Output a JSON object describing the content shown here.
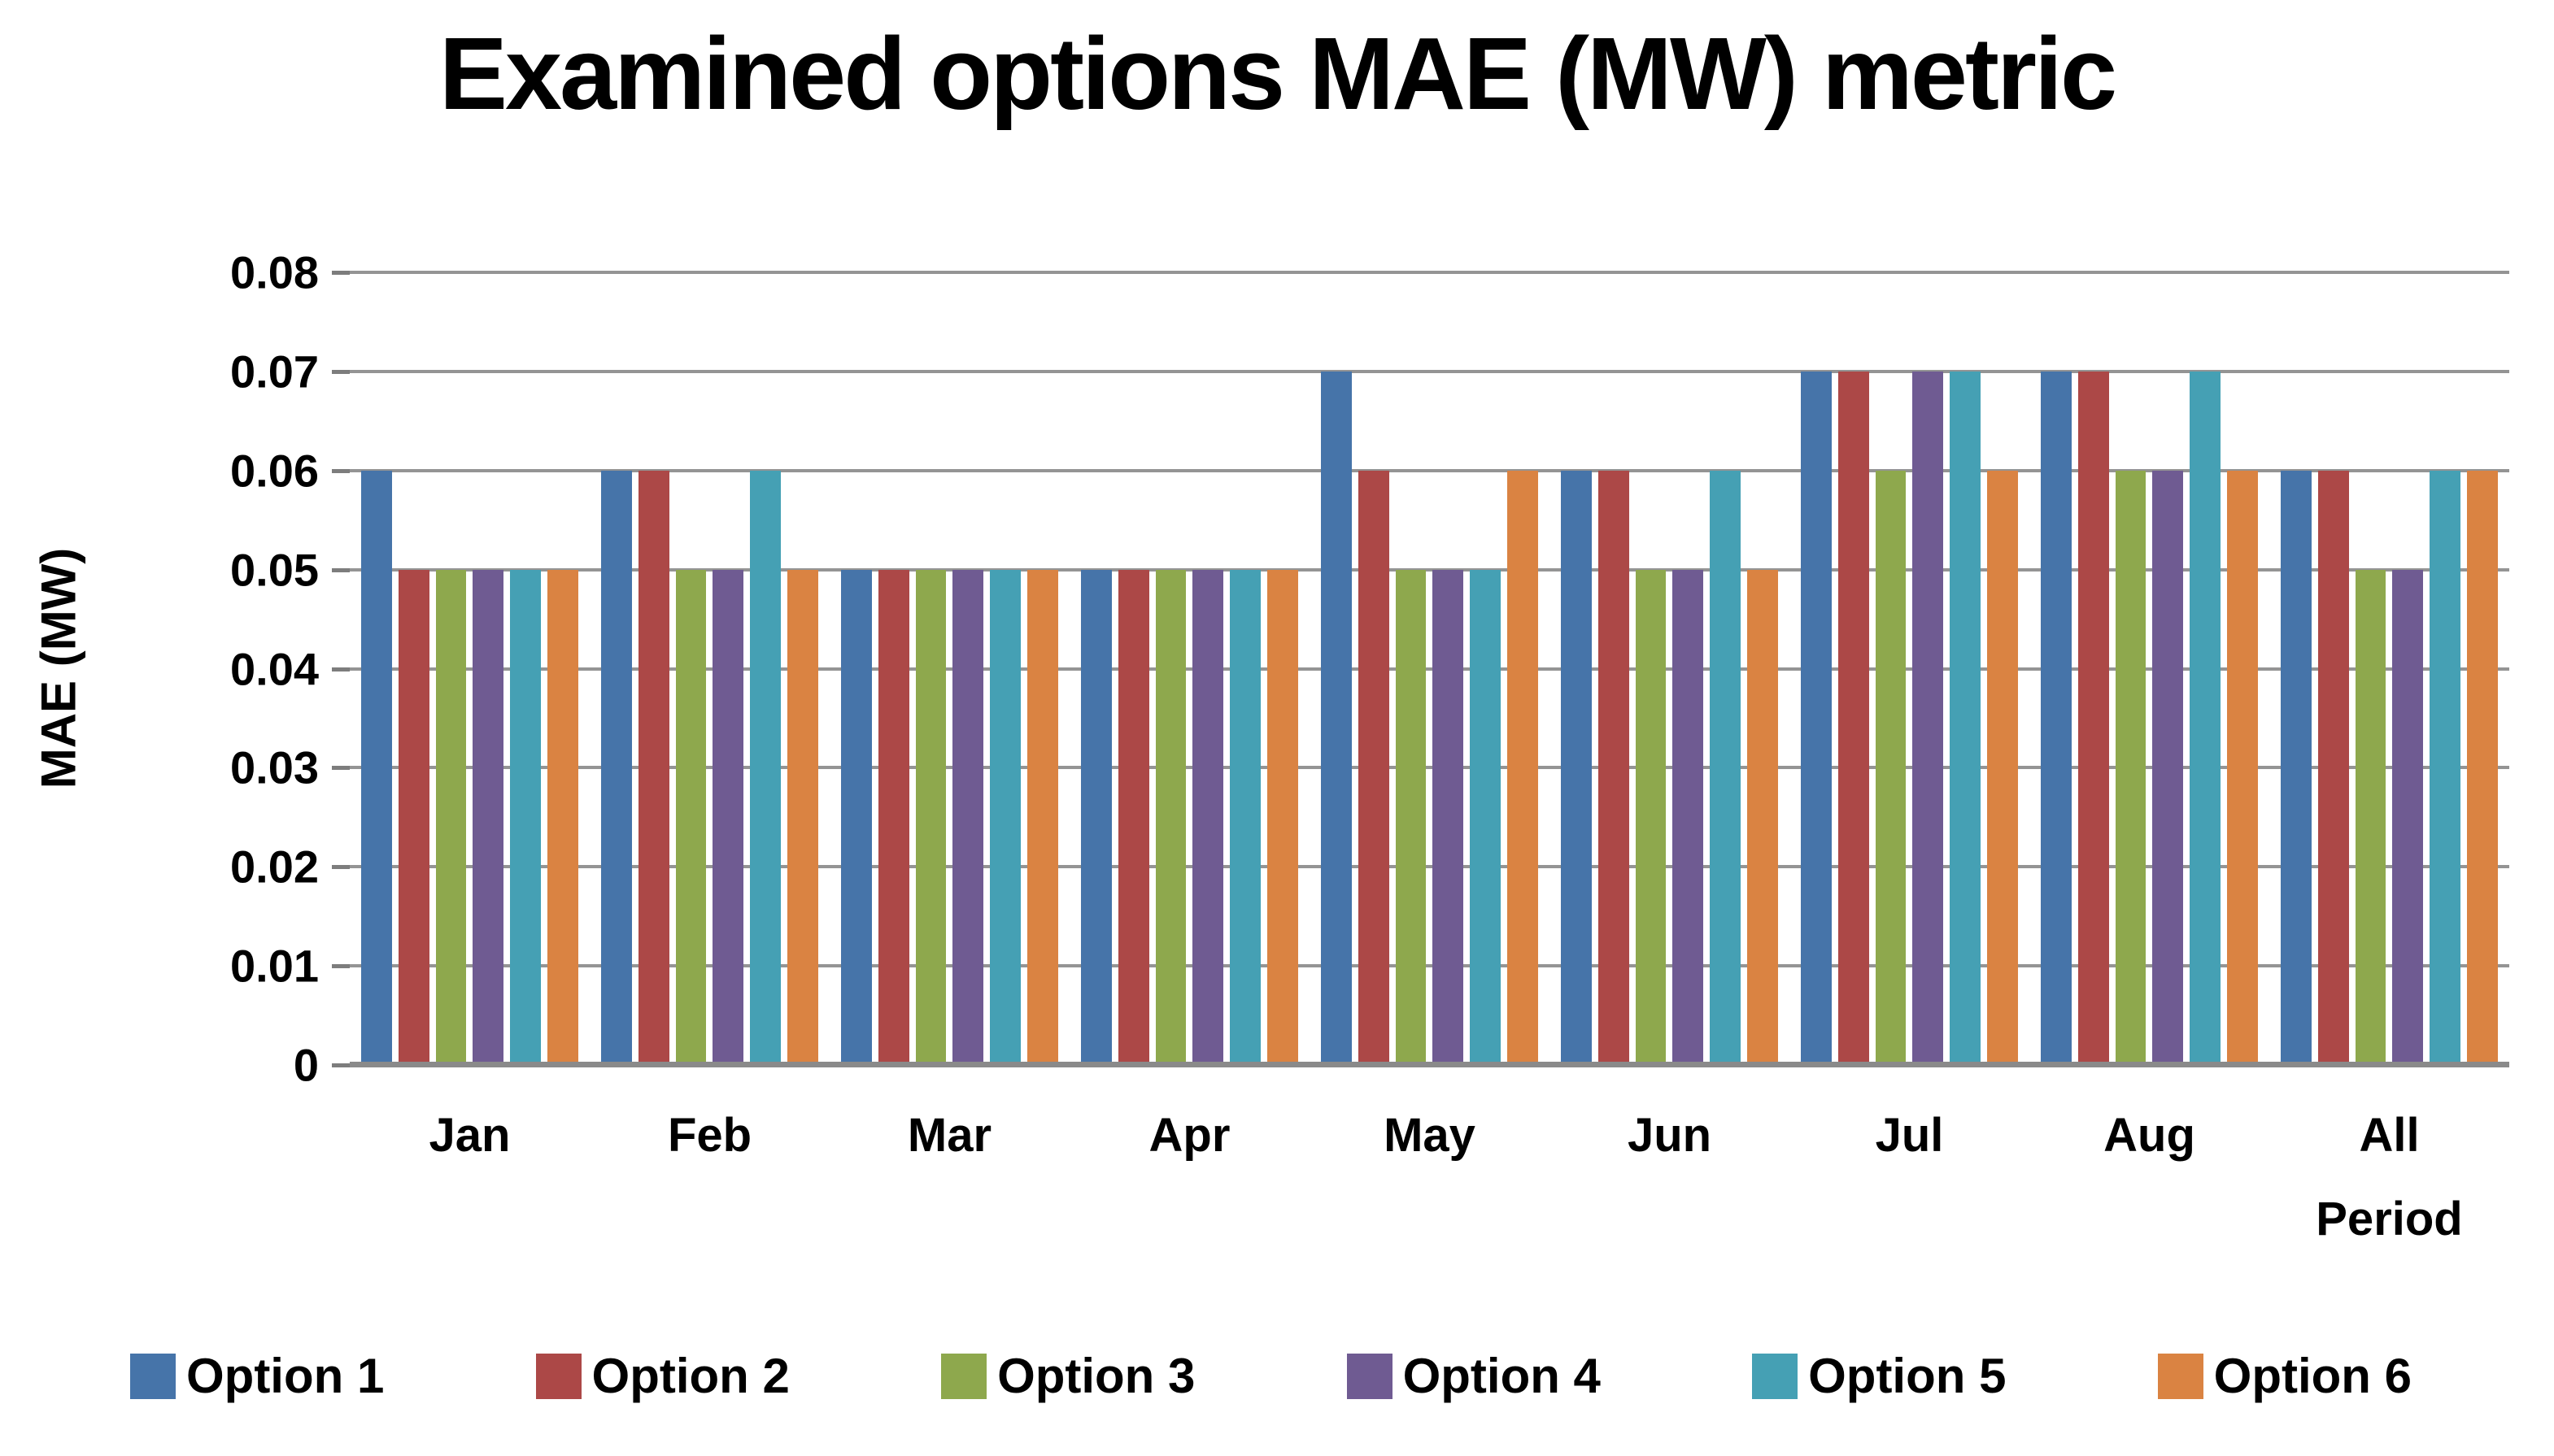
{
  "chart_data": {
    "type": "bar",
    "title": "Examined options MAE (MW) metric",
    "xlabel": "",
    "ylabel": "MAE (MW)",
    "ylim": [
      0,
      0.08
    ],
    "ytick_step": 0.01,
    "yticks": [
      "0.08",
      "0.07",
      "0.06",
      "0.05",
      "0.04",
      "0.03",
      "0.02",
      "0.01",
      "0"
    ],
    "grid": true,
    "legend_position": "bottom",
    "categories": [
      "Jan",
      "Feb",
      "Mar",
      "Apr",
      "May",
      "Jun",
      "Jul",
      "Aug",
      "All Period"
    ],
    "series": [
      {
        "name": "Option 1",
        "color": "#4674A9",
        "values": [
          0.06,
          0.06,
          0.05,
          0.05,
          0.07,
          0.06,
          0.07,
          0.07,
          0.06
        ]
      },
      {
        "name": "Option 2",
        "color": "#AC4847",
        "values": [
          0.05,
          0.06,
          0.05,
          0.05,
          0.06,
          0.06,
          0.07,
          0.07,
          0.06
        ]
      },
      {
        "name": "Option 3",
        "color": "#8EA84D",
        "values": [
          0.05,
          0.05,
          0.05,
          0.05,
          0.05,
          0.05,
          0.06,
          0.06,
          0.05
        ]
      },
      {
        "name": "Option 4",
        "color": "#6F5B92",
        "values": [
          0.05,
          0.05,
          0.05,
          0.05,
          0.05,
          0.05,
          0.07,
          0.06,
          0.05
        ]
      },
      {
        "name": "Option 5",
        "color": "#45A0B4",
        "values": [
          0.05,
          0.06,
          0.05,
          0.05,
          0.05,
          0.06,
          0.07,
          0.07,
          0.06
        ]
      },
      {
        "name": "Option 6",
        "color": "#DA8342",
        "values": [
          0.05,
          0.05,
          0.05,
          0.05,
          0.06,
          0.05,
          0.06,
          0.06,
          0.06
        ]
      }
    ]
  },
  "colors": {
    "background": "#FFFFFF",
    "gridline": "#949494",
    "axis_line": "#8A8A8A",
    "text": "#000000"
  }
}
